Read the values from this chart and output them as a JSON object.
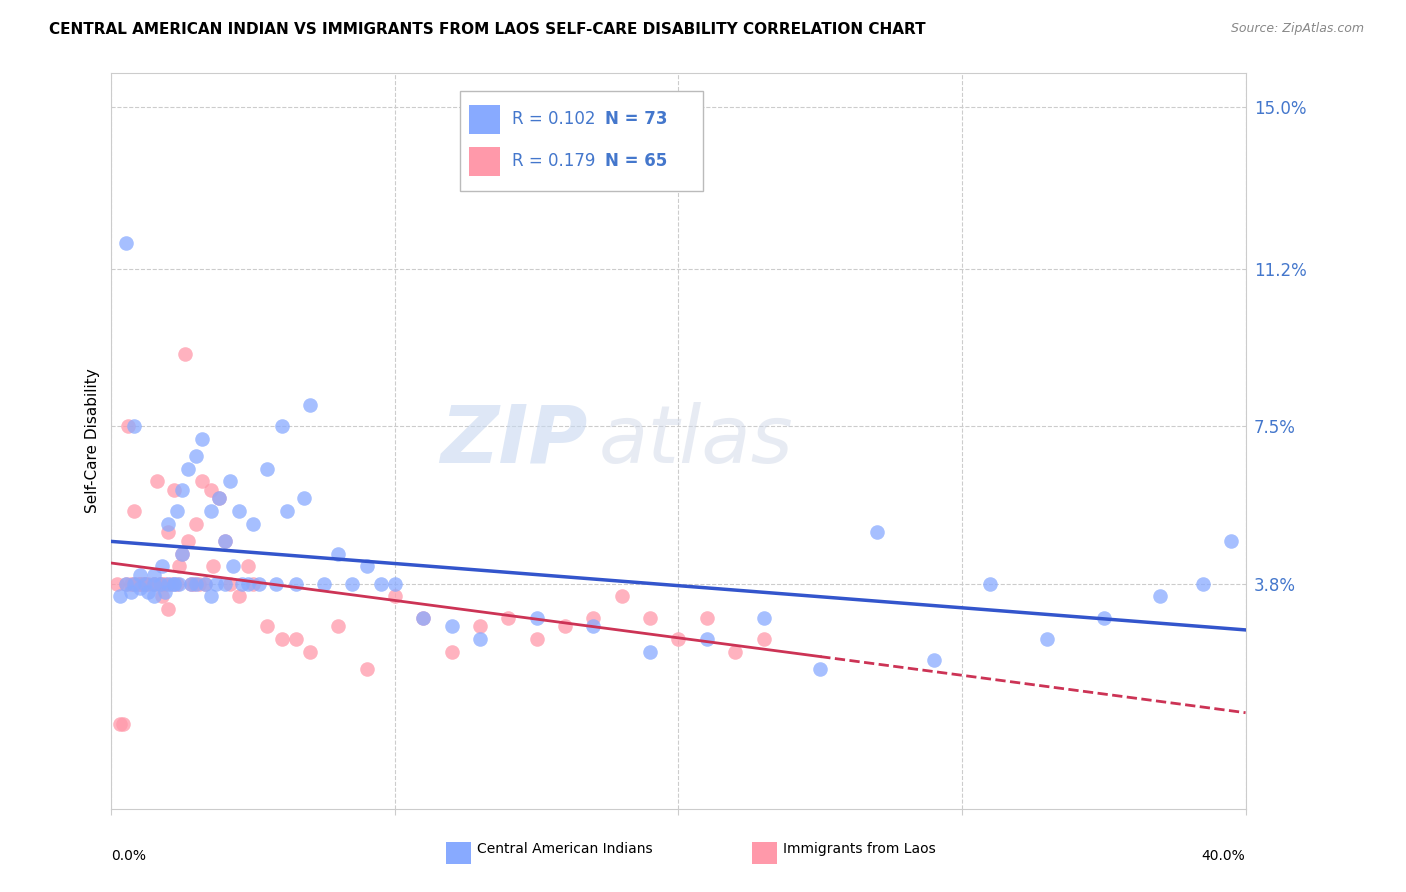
{
  "title": "CENTRAL AMERICAN INDIAN VS IMMIGRANTS FROM LAOS SELF-CARE DISABILITY CORRELATION CHART",
  "source": "Source: ZipAtlas.com",
  "ylabel": "Self-Care Disability",
  "xlim": [
    0.0,
    0.4
  ],
  "ylim": [
    -0.015,
    0.158
  ],
  "ytick_vals": [
    0.038,
    0.075,
    0.112,
    0.15
  ],
  "ytick_labels": [
    "3.8%",
    "7.5%",
    "11.2%",
    "15.0%"
  ],
  "legend1_r": "0.102",
  "legend1_n": "73",
  "legend2_r": "0.179",
  "legend2_n": "65",
  "color_blue": "#88aaff",
  "color_pink": "#ff99aa",
  "trendline_blue": "#3355cc",
  "trendline_pink": "#cc3355",
  "axis_label_color": "#4477cc",
  "watermark": "ZIPatlas",
  "blue_x": [
    0.003,
    0.005,
    0.007,
    0.008,
    0.01,
    0.01,
    0.012,
    0.013,
    0.015,
    0.015,
    0.017,
    0.018,
    0.019,
    0.02,
    0.02,
    0.022,
    0.023,
    0.024,
    0.025,
    0.025,
    0.027,
    0.028,
    0.03,
    0.03,
    0.032,
    0.033,
    0.035,
    0.035,
    0.037,
    0.038,
    0.04,
    0.04,
    0.042,
    0.043,
    0.045,
    0.046,
    0.048,
    0.05,
    0.052,
    0.055,
    0.058,
    0.06,
    0.062,
    0.065,
    0.068,
    0.07,
    0.075,
    0.08,
    0.085,
    0.09,
    0.095,
    0.1,
    0.11,
    0.12,
    0.13,
    0.15,
    0.17,
    0.19,
    0.21,
    0.23,
    0.25,
    0.27,
    0.29,
    0.31,
    0.33,
    0.35,
    0.37,
    0.385,
    0.395,
    0.005,
    0.008,
    0.015,
    0.022
  ],
  "blue_y": [
    0.035,
    0.038,
    0.036,
    0.038,
    0.037,
    0.04,
    0.038,
    0.036,
    0.035,
    0.04,
    0.038,
    0.042,
    0.036,
    0.038,
    0.052,
    0.038,
    0.055,
    0.038,
    0.06,
    0.045,
    0.065,
    0.038,
    0.068,
    0.038,
    0.072,
    0.038,
    0.055,
    0.035,
    0.038,
    0.058,
    0.048,
    0.038,
    0.062,
    0.042,
    0.055,
    0.038,
    0.038,
    0.052,
    0.038,
    0.065,
    0.038,
    0.075,
    0.055,
    0.038,
    0.058,
    0.08,
    0.038,
    0.045,
    0.038,
    0.042,
    0.038,
    0.038,
    0.03,
    0.028,
    0.025,
    0.03,
    0.028,
    0.022,
    0.025,
    0.03,
    0.018,
    0.05,
    0.02,
    0.038,
    0.025,
    0.03,
    0.035,
    0.038,
    0.048,
    0.118,
    0.075,
    0.038,
    0.038
  ],
  "pink_x": [
    0.002,
    0.003,
    0.004,
    0.005,
    0.006,
    0.007,
    0.008,
    0.009,
    0.01,
    0.011,
    0.012,
    0.013,
    0.015,
    0.016,
    0.017,
    0.018,
    0.019,
    0.02,
    0.021,
    0.022,
    0.023,
    0.024,
    0.025,
    0.026,
    0.027,
    0.028,
    0.029,
    0.03,
    0.031,
    0.032,
    0.033,
    0.035,
    0.036,
    0.038,
    0.04,
    0.042,
    0.045,
    0.048,
    0.05,
    0.055,
    0.06,
    0.065,
    0.07,
    0.08,
    0.09,
    0.1,
    0.11,
    0.12,
    0.13,
    0.14,
    0.15,
    0.16,
    0.17,
    0.18,
    0.19,
    0.2,
    0.21,
    0.22,
    0.23,
    0.008,
    0.01,
    0.012,
    0.015,
    0.018,
    0.02
  ],
  "pink_y": [
    0.038,
    0.005,
    0.005,
    0.038,
    0.075,
    0.038,
    0.055,
    0.038,
    0.038,
    0.038,
    0.038,
    0.038,
    0.038,
    0.062,
    0.038,
    0.035,
    0.038,
    0.05,
    0.038,
    0.06,
    0.038,
    0.042,
    0.045,
    0.092,
    0.048,
    0.038,
    0.038,
    0.052,
    0.038,
    0.062,
    0.038,
    0.06,
    0.042,
    0.058,
    0.048,
    0.038,
    0.035,
    0.042,
    0.038,
    0.028,
    0.025,
    0.025,
    0.022,
    0.028,
    0.018,
    0.035,
    0.03,
    0.022,
    0.028,
    0.03,
    0.025,
    0.028,
    0.03,
    0.035,
    0.03,
    0.025,
    0.03,
    0.022,
    0.025,
    0.038,
    0.038,
    0.038,
    0.038,
    0.038,
    0.032
  ]
}
